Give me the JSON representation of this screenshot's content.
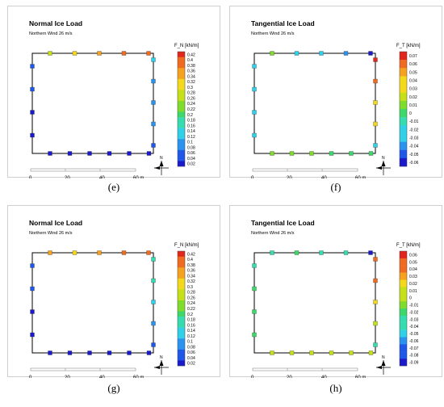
{
  "north_letter": "N",
  "chart_data": [
    {
      "type": "heatmap",
      "title": "Normal Ice Load",
      "subtitle": "Northern Wind 26 m/s",
      "caption": "(e)",
      "colorbar_title": "F_N [kN/m]",
      "colorbar_ticks": [
        "0.42",
        "0.4",
        "0.38",
        "0.36",
        "0.34",
        "0.32",
        "0.3",
        "0.28",
        "0.26",
        "0.24",
        "0.22",
        "0.2",
        "0.18",
        "0.16",
        "0.14",
        "0.12",
        "0.1",
        "0.08",
        "0.06",
        "0.04",
        "0.02"
      ],
      "vmin": 0.02,
      "vmax": 0.42,
      "scalebar_labels": [
        "0",
        "20",
        "40",
        "60 m"
      ],
      "points": {
        "top": [
          0.28,
          0.32,
          0.36,
          0.4,
          0.4
        ],
        "bottom": [
          0.02,
          0.02,
          0.02,
          0.02,
          0.02,
          0.02
        ],
        "left": [
          0.04,
          0.04,
          0.02,
          0.02
        ],
        "right": [
          0.12,
          0.11,
          0.1,
          0.08,
          0.06
        ]
      }
    },
    {
      "type": "heatmap",
      "title": "Tangential Ice Load",
      "subtitle": "Northern Wind 26 m/s",
      "caption": "(f)",
      "colorbar_title": "F_T [kN/m]",
      "colorbar_ticks": [
        "0.07",
        "0.06",
        "0.05",
        "0.04",
        "0.03",
        "0.02",
        "0.01",
        "0",
        "-0.01",
        "-0.02",
        "-0.03",
        "-0.04",
        "-0.05",
        "-0.06"
      ],
      "vmin": -0.06,
      "vmax": 0.07,
      "scalebar_labels": [
        "0",
        "20",
        "40",
        "60 m"
      ],
      "points": {
        "top": [
          0.01,
          -0.02,
          -0.03,
          -0.04,
          -0.06
        ],
        "bottom": [
          0.01,
          0.01,
          0.01,
          0.0,
          0.0,
          0.0
        ],
        "left": [
          -0.02,
          -0.02,
          -0.02,
          -0.02
        ],
        "right": [
          0.07,
          0.06,
          0.04,
          0.03,
          -0.02
        ]
      }
    },
    {
      "type": "heatmap",
      "title": "Normal Ice Load",
      "subtitle": "Northern Wind 26 m/s",
      "caption": "(g)",
      "colorbar_title": "F_N [kN/m]",
      "colorbar_ticks": [
        "0.42",
        "0.4",
        "0.38",
        "0.36",
        "0.34",
        "0.32",
        "0.3",
        "0.28",
        "0.26",
        "0.24",
        "0.22",
        "0.2",
        "0.18",
        "0.16",
        "0.14",
        "0.12",
        "0.1",
        "0.08",
        "0.06",
        "0.04",
        "0.02"
      ],
      "vmin": 0.02,
      "vmax": 0.42,
      "scalebar_labels": [
        "0",
        "20",
        "40",
        "60 m"
      ],
      "points": {
        "top": [
          0.36,
          0.3,
          0.35,
          0.4,
          0.38
        ],
        "bottom": [
          0.02,
          0.02,
          0.02,
          0.02,
          0.02,
          0.02
        ],
        "left": [
          0.06,
          0.04,
          0.02,
          0.02
        ],
        "right": [
          0.16,
          0.15,
          0.12,
          0.11,
          0.06
        ]
      }
    },
    {
      "type": "heatmap",
      "title": "Tangential Ice Load",
      "subtitle": "Northern Wind 26 m/s",
      "caption": "(h)",
      "colorbar_title": "F_T [kN/m]",
      "colorbar_ticks": [
        "0.06",
        "0.05",
        "0.04",
        "0.03",
        "0.02",
        "0.01",
        "0",
        "-0.01",
        "-0.02",
        "-0.03",
        "-0.04",
        "-0.05",
        "-0.06",
        "-0.07",
        "-0.08",
        "-0.09"
      ],
      "vmin": -0.09,
      "vmax": 0.06,
      "scalebar_labels": [
        "0",
        "20",
        "40",
        "60 m"
      ],
      "points": {
        "top": [
          -0.03,
          -0.02,
          -0.03,
          -0.04,
          -0.09
        ],
        "bottom": [
          0.0,
          0.0,
          0.01,
          0.0,
          0.0,
          0.01
        ],
        "left": [
          -0.04,
          -0.02,
          -0.02,
          -0.02
        ],
        "right": [
          0.05,
          0.04,
          0.02,
          0.01,
          -0.04
        ]
      }
    }
  ]
}
